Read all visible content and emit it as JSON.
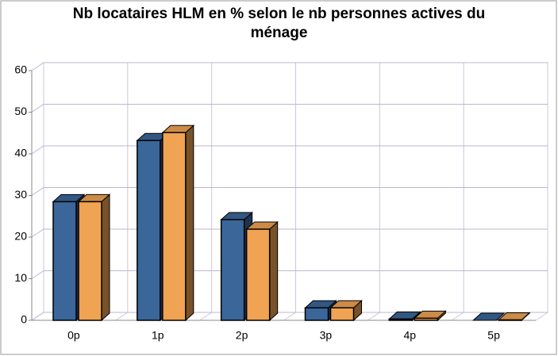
{
  "chart_data": {
    "type": "bar3d",
    "title": "Nb locataires HLM en % selon le nb personnes actives du ménage",
    "categories": [
      "0p",
      "1p",
      "2p",
      "3p",
      "4p",
      "5p"
    ],
    "series": [
      {
        "color": "#3a6699",
        "values": [
          28.5,
          43.2,
          24.2,
          3.0,
          0.3,
          0
        ]
      },
      {
        "color": "#f0a352",
        "values": [
          28.5,
          45.1,
          21.9,
          3.0,
          0.5,
          0.1
        ]
      }
    ],
    "ylim": [
      0,
      60
    ],
    "yticks": [
      0,
      10,
      20,
      30,
      40,
      50,
      60
    ],
    "grid": true
  }
}
